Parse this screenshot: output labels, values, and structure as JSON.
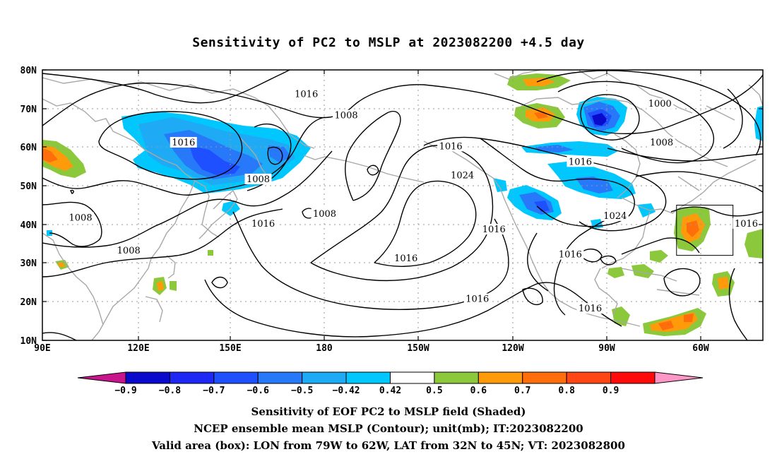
{
  "title": "Sensitivity of PC2 to MSLP at 2023082200 +4.5 day",
  "axes": {
    "lat_labels": [
      "80N",
      "70N",
      "60N",
      "50N",
      "40N",
      "30N",
      "20N",
      "10N"
    ],
    "lon_labels": [
      "90E",
      "120E",
      "150E",
      "180",
      "150W",
      "120W",
      "90W",
      "60W"
    ]
  },
  "contour_labels": [
    {
      "text": "1016",
      "lon": 169.5,
      "lat": 73.5
    },
    {
      "text": "1008",
      "lon": -178.5,
      "lat": 68.0
    },
    {
      "text": "1000",
      "lon": -84.0,
      "lat": 71.0
    },
    {
      "text": "1016",
      "lon": 132.5,
      "lat": 61.0
    },
    {
      "text": "1016",
      "lon": -147.0,
      "lat": 60.0
    },
    {
      "text": "1008",
      "lon": -83.5,
      "lat": 61.0
    },
    {
      "text": "1016",
      "lon": -108.0,
      "lat": 56.0
    },
    {
      "text": "1024",
      "lon": -143.5,
      "lat": 52.5
    },
    {
      "text": "1008",
      "lon": 155.0,
      "lat": 51.5
    },
    {
      "text": "1008",
      "lon": 175.0,
      "lat": 42.5
    },
    {
      "text": "1024",
      "lon": -97.5,
      "lat": 42.0
    },
    {
      "text": "1008",
      "lon": 101.5,
      "lat": 41.5
    },
    {
      "text": "1016",
      "lon": 156.5,
      "lat": 40.0
    },
    {
      "text": "1016",
      "lon": -58.0,
      "lat": 40.0
    },
    {
      "text": "1016",
      "lon": -134.0,
      "lat": 38.5
    },
    {
      "text": "1008",
      "lon": 116.0,
      "lat": 33.0
    },
    {
      "text": "1016",
      "lon": -111.0,
      "lat": 32.0
    },
    {
      "text": "1016",
      "lon": -160.5,
      "lat": 31.0
    },
    {
      "text": "1016",
      "lon": -139.0,
      "lat": 20.5
    },
    {
      "text": "1016",
      "lon": -105.0,
      "lat": 18.0
    }
  ],
  "valid_box": {
    "lon_min": -79,
    "lon_max": -62,
    "lat_min": 32,
    "lat_max": 45
  },
  "colorbar": {
    "labels": [
      "-0.9",
      "-0.8",
      "-0.7",
      "-0.6",
      "-0.5",
      "-0.42",
      "0.42",
      "0.5",
      "0.6",
      "0.7",
      "0.8",
      "0.9"
    ],
    "colors": [
      "#c8158c",
      "#0a0acd",
      "#1e28f5",
      "#1e50ff",
      "#2878fa",
      "#1eaaf5",
      "#00c8ff",
      "#ffffff",
      "#8cc83c",
      "#ff9b0a",
      "#ff6e0a",
      "#ff4614",
      "#ff0a0a",
      "#ff96c8"
    ]
  },
  "captions": [
    "Sensitivity of EOF PC2 to MSLP field (Shaded)",
    "NCEP ensemble mean MSLP (Contour); unit(mb); IT:2023082200",
    "Valid area (box): LON from 79W to 62W, LAT from 32N to 45N; VT: 2023082800"
  ]
}
